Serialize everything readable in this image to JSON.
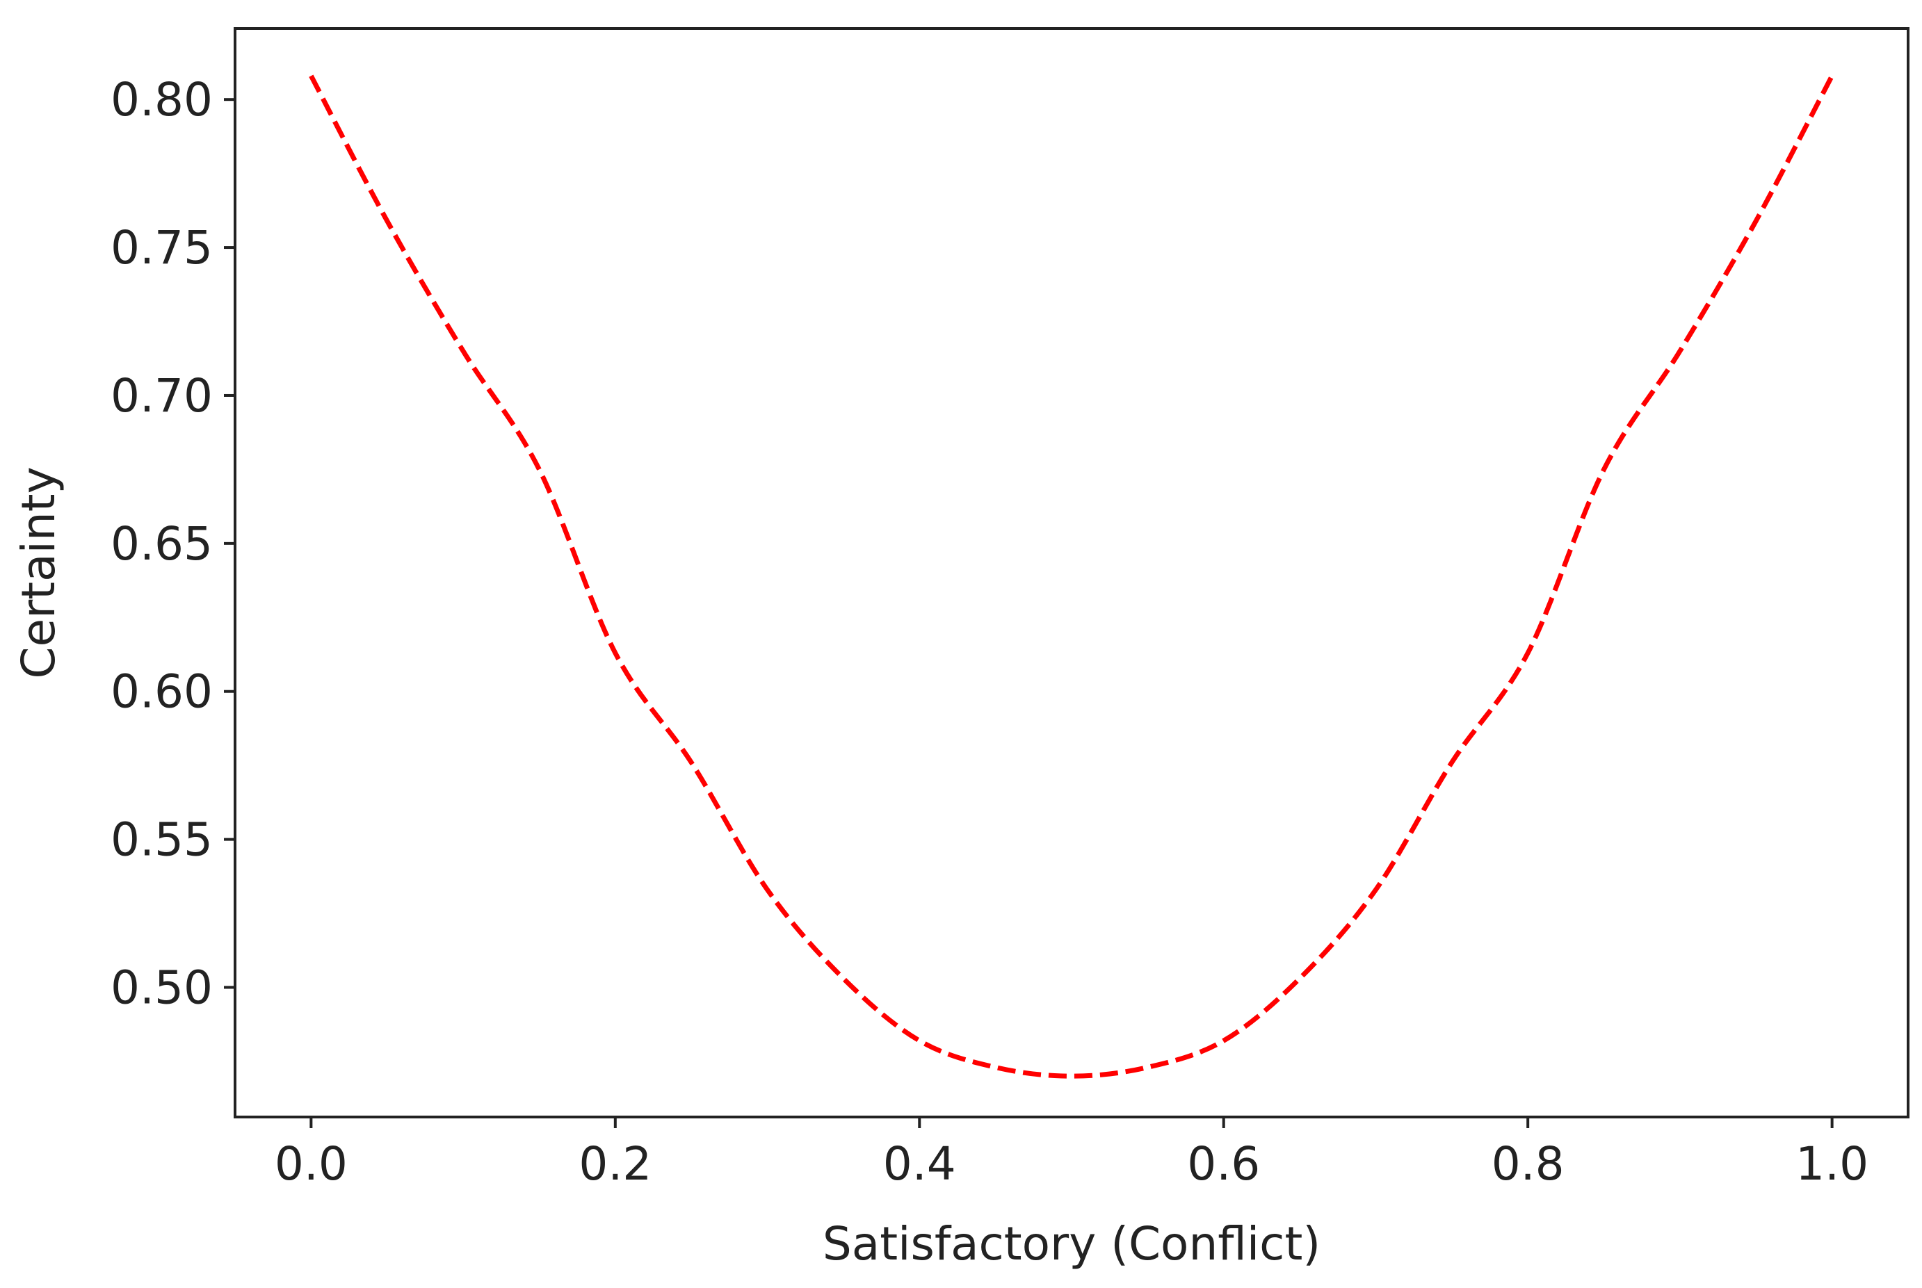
{
  "chart_data": {
    "type": "line",
    "title": "",
    "xlabel": "Satisfactory (Conflict)",
    "ylabel": "Certainty",
    "xlim": [
      -0.05,
      1.05
    ],
    "ylim": [
      0.4562,
      0.824
    ],
    "grid": false,
    "x_ticks": [
      "0.0",
      "0.2",
      "0.4",
      "0.6",
      "0.8",
      "1.0"
    ],
    "y_ticks": [
      "0.50",
      "0.55",
      "0.60",
      "0.65",
      "0.70",
      "0.75",
      "0.80"
    ],
    "series": [
      {
        "color": "#ff0000",
        "line_style": "dashed",
        "x": [
          0.0,
          0.05,
          0.1,
          0.15,
          0.2,
          0.25,
          0.3,
          0.35,
          0.4,
          0.45,
          0.5,
          0.55,
          0.6,
          0.65,
          0.7,
          0.75,
          0.8,
          0.85,
          0.9,
          0.95,
          1.0
        ],
        "values": [
          0.808,
          0.759,
          0.715,
          0.675,
          0.613,
          0.576,
          0.533,
          0.503,
          0.482,
          0.473,
          0.47,
          0.473,
          0.482,
          0.503,
          0.533,
          0.576,
          0.613,
          0.675,
          0.715,
          0.759,
          0.808
        ]
      }
    ]
  }
}
